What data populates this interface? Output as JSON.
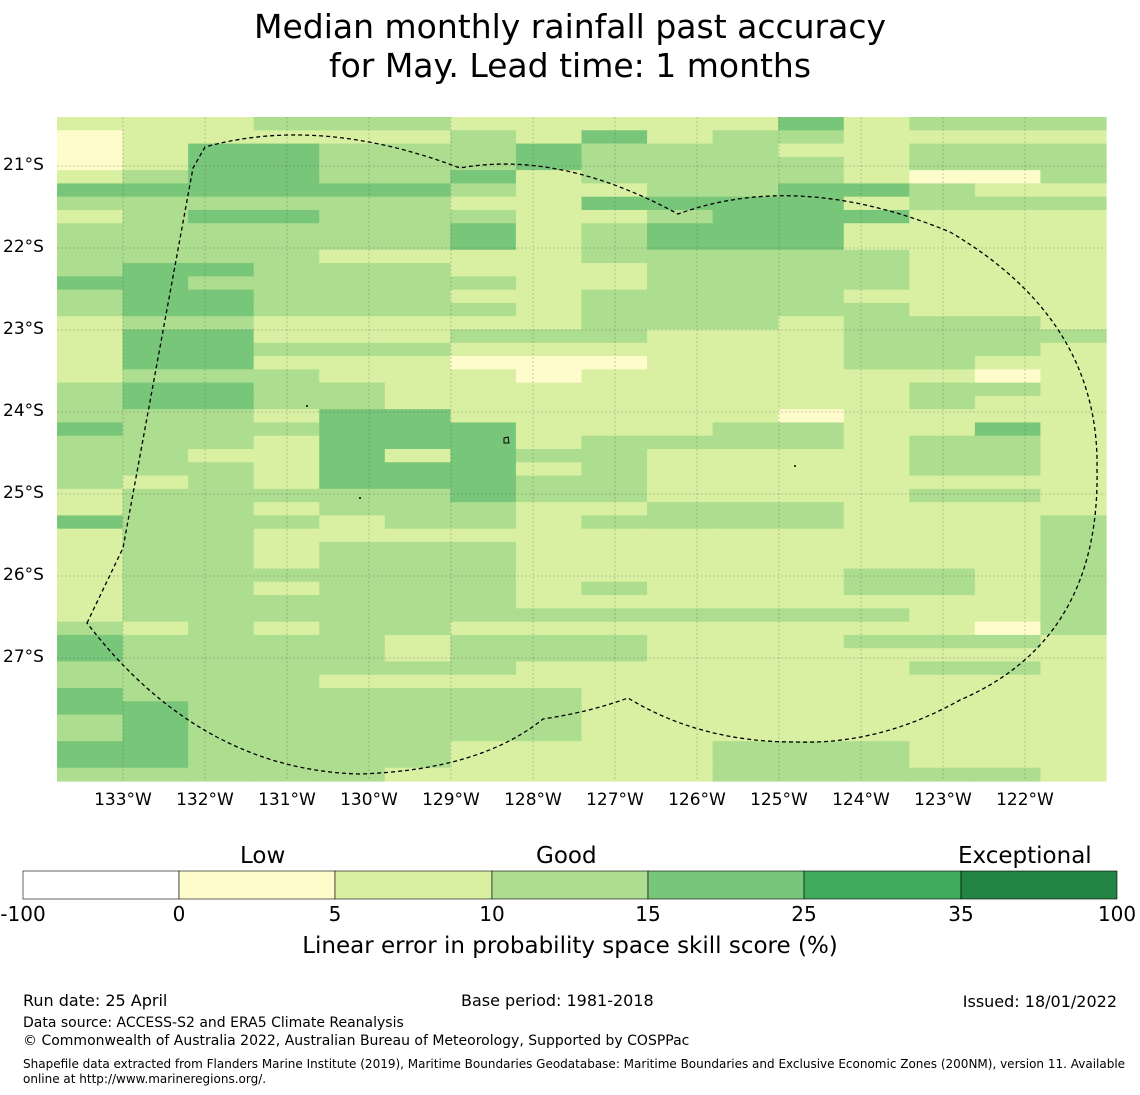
{
  "title": {
    "line1": "Median monthly rainfall past accuracy",
    "line2": "for May. Lead time: 1 months"
  },
  "map": {
    "y_labels": [
      "21°S",
      "22°S",
      "23°S",
      "24°S",
      "25°S",
      "26°S",
      "27°S"
    ],
    "x_labels": [
      "133°W",
      "132°W",
      "131°W",
      "130°W",
      "129°W",
      "128°W",
      "127°W",
      "126°W",
      "125°W",
      "124°W",
      "123°W",
      "122°W"
    ],
    "legend_categories": {
      "0": "#ffffff",
      "1": "#fffccc",
      "2": "#d9f0a3",
      "3": "#addd8e",
      "4": "#78c679",
      "5": "#41ab5d",
      "6": "#238443"
    },
    "grid": [
      "2223332222242333",
      "1222223242332222",
      "1244333433322333",
      "1244333433332333",
      "2344334233332113",
      "4444443223344322",
      "3333332244442333",
      "2344333223444222",
      "3333334234442222",
      "3333334234442222",
      "3333222233333222",
      "3443332223333222",
      "4433333223333222",
      "3443332233332222",
      "3443333233333222",
      "2332222233323332",
      "2442223332223333",
      "2443332222223332",
      "2442221112223322",
      "2333222122222212",
      "3443322222222332",
      "3443322222222322",
      "3332442222212222",
      "4333444222332242",
      "3332444233332332",
      "3322424332222332",
      "3332444232222332",
      "3232444332222222",
      "2333334332222332",
      "2332333223332222",
      "4333233233332223",
      "2332222222222223",
      "2332333222222223",
      "2332333222222223",
      "2333333222223323",
      "2332333232223323",
      "2333333222222223",
      "2333333333333223",
      "3232332222222213",
      "4333323332223332",
      "4333323332222222",
      "3333333222222332",
      "3333222222222222",
      "4333333322222222",
      "4433333322222222",
      "3433333322222222",
      "3433333322222222",
      "4433332222333222",
      "4433332222333222",
      "3333322222333332"
    ]
  },
  "colorbar": {
    "categories": [
      "Low",
      "Good",
      "Exceptional"
    ],
    "ticks": [
      "-100",
      "0",
      "5",
      "10",
      "15",
      "25",
      "35",
      "100"
    ],
    "label": "Linear error in probability space skill score (%)",
    "colors": [
      "#ffffff",
      "#fffccc",
      "#d9f0a3",
      "#addd8e",
      "#78c679",
      "#41ab5d",
      "#238443"
    ]
  },
  "footer": {
    "run_date": "Run date: 25 April",
    "base_period": "Base period: 1981-2018",
    "issued": "Issued: 18/01/2022",
    "data_source": "Data source: ACCESS-S2 and ERA5 Climate Reanalysis",
    "copyright": "© Commonwealth of Australia 2022, Australian Bureau of Meteorology, Supported by COSPPac",
    "shapefile_line1": "Shapefile data extracted from Flanders Marine Institute (2019), Maritime Boundaries Geodatabase: Maritime Boundaries and Exclusive Economic Zones (200NM), version 11. Available",
    "shapefile_line2": "online at http://www.marineregions.org/."
  }
}
